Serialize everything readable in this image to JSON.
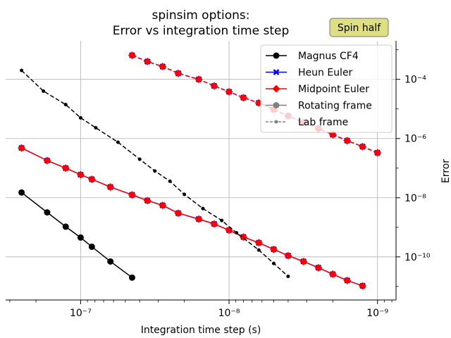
{
  "chart_data": {
    "type": "line",
    "title": "spinsim options:",
    "subtitle": "Error vs integration time step",
    "xlabel": "Integration time step (s)",
    "ylabel": "Error",
    "x_axis": {
      "scale": "log",
      "reversed": true,
      "lim": [
        3.2e-07,
        7.5e-10
      ],
      "major_ticks": [
        1e-07,
        1e-08,
        1e-09
      ],
      "tick_labels": [
        "10⁻⁷",
        "10⁻⁸",
        "10⁻⁹"
      ]
    },
    "y_axis": {
      "scale": "log",
      "position": "right",
      "lim": [
        3.5e-12,
        0.002
      ],
      "major_ticks": [
        0.0001,
        1e-06,
        1e-08,
        1e-10
      ],
      "tick_labels": [
        "10⁻⁴",
        "10⁻⁶",
        "10⁻⁸",
        "10⁻¹⁰"
      ]
    },
    "grid": true,
    "legend_position": "top-right",
    "annotation": {
      "text": "Spin half",
      "background": "#dede82"
    },
    "legend": [
      {
        "label": "Magnus CF4",
        "color": "#000000",
        "marker": "circle",
        "line": "solid"
      },
      {
        "label": "Heun Euler",
        "color": "#0000ff",
        "marker": "x",
        "line": "solid"
      },
      {
        "label": "Midpoint Euler",
        "color": "#ff0000",
        "marker": "diamond",
        "line": "solid"
      },
      {
        "label": "Rotating frame",
        "color": "#808080",
        "marker": "circle",
        "line": "solid"
      },
      {
        "label": "Lab frame",
        "color": "#808080",
        "marker": "small-circle",
        "line": "dashed"
      }
    ],
    "series": [
      {
        "method": "Magnus CF4",
        "frame": "Rotating frame",
        "color": "#000000",
        "marker": "circle",
        "line": "solid",
        "x": [
          2.5e-07,
          1.68e-07,
          1.26e-07,
          1e-07,
          8.4e-08,
          6.3e-08,
          4.5e-08
        ],
        "y": [
          1.5e-08,
          3.2e-09,
          1.05e-09,
          4.5e-10,
          2.2e-10,
          7e-11,
          2e-11
        ]
      },
      {
        "method": "Heun Euler",
        "frame": "Rotating frame",
        "color": "#0000ff",
        "marker": "x",
        "line": "solid",
        "x": [
          2.5e-07,
          1.68e-07,
          1.26e-07,
          1e-07,
          8.4e-08,
          6.3e-08,
          4.5e-08,
          3.55e-08,
          2.8e-08,
          2.2e-08,
          1.6e-08,
          1.26e-08,
          1e-08,
          8e-09,
          6.3e-09,
          5e-09,
          4e-09,
          3.15e-09,
          2.5e-09,
          2e-09,
          1.6e-09,
          1.26e-09
        ],
        "y": [
          4.8e-07,
          1.8e-07,
          1e-07,
          6e-08,
          4.2e-08,
          2.3e-08,
          1.25e-08,
          8e-09,
          5.5e-09,
          3e-09,
          1.9e-09,
          1.3e-09,
          8e-10,
          4.7e-10,
          3e-10,
          1.8e-10,
          1.1e-10,
          7e-11,
          4.3e-11,
          2.6e-11,
          1.6e-11,
          1.05e-11
        ]
      },
      {
        "method": "Midpoint Euler",
        "frame": "Rotating frame",
        "color": "#ff0000",
        "marker": "diamond",
        "line": "solid",
        "x": [
          2.5e-07,
          1.68e-07,
          1.26e-07,
          1e-07,
          8.4e-08,
          6.3e-08,
          4.5e-08,
          3.55e-08,
          2.8e-08,
          2.2e-08,
          1.6e-08,
          1.26e-08,
          1e-08,
          8e-09,
          6.3e-09,
          5e-09,
          4e-09,
          3.15e-09,
          2.5e-09,
          2e-09,
          1.6e-09,
          1.26e-09
        ],
        "y": [
          4.8e-07,
          1.8e-07,
          1e-07,
          6e-08,
          4.2e-08,
          2.3e-08,
          1.25e-08,
          8e-09,
          5.5e-09,
          3e-09,
          1.9e-09,
          1.3e-09,
          8e-10,
          4.7e-10,
          3e-10,
          1.8e-10,
          1.1e-10,
          7e-11,
          4.3e-11,
          2.6e-11,
          1.6e-11,
          1.05e-11
        ]
      },
      {
        "method": "Magnus CF4",
        "frame": "Lab frame",
        "color": "#000000",
        "marker": "small-circle",
        "line": "dashed",
        "x": [
          2.5e-07,
          1.78e-07,
          1.26e-07,
          1e-07,
          7.9e-08,
          5.6e-08,
          4e-08,
          3.16e-08,
          2.5e-08,
          2e-08,
          1.5e-08,
          1.12e-08,
          8.9e-09,
          6.3e-09,
          5e-09,
          4e-09
        ],
        "y": [
          0.0002,
          4e-05,
          1.4e-05,
          5e-06,
          2.3e-06,
          7.5e-07,
          2e-07,
          8e-08,
          3.6e-08,
          1.3e-08,
          4.3e-09,
          1.7e-09,
          6.5e-10,
          1.7e-10,
          6e-11,
          2.2e-11
        ]
      },
      {
        "method": "Heun Euler",
        "frame": "Lab frame",
        "color": "#0000ff",
        "marker": "x",
        "line": "dashed",
        "x": [
          4.5e-08,
          3.55e-08,
          2.8e-08,
          2.2e-08,
          1.6e-08,
          1.26e-08,
          1e-08,
          8e-09,
          6.3e-09,
          5e-09,
          4e-09,
          3.15e-09,
          2.5e-09,
          2e-09,
          1.6e-09,
          1.26e-09,
          1e-09
        ],
        "y": [
          0.00065,
          0.0004,
          0.00027,
          0.00016,
          0.0001,
          6e-05,
          3.8e-05,
          2.4e-05,
          1.6e-05,
          9.5e-06,
          5.8e-06,
          3.5e-06,
          2.2e-06,
          1.35e-06,
          8.5e-07,
          5.3e-07,
          3.3e-07
        ]
      },
      {
        "method": "Midpoint Euler",
        "frame": "Lab frame",
        "color": "#ff0000",
        "marker": "diamond",
        "line": "dashed",
        "x": [
          4.5e-08,
          3.55e-08,
          2.8e-08,
          2.2e-08,
          1.6e-08,
          1.26e-08,
          1e-08,
          8e-09,
          6.3e-09,
          5e-09,
          4e-09,
          3.15e-09,
          2.5e-09,
          2e-09,
          1.6e-09,
          1.26e-09,
          1e-09
        ],
        "y": [
          0.00065,
          0.0004,
          0.00027,
          0.00016,
          0.0001,
          6e-05,
          3.8e-05,
          2.4e-05,
          1.6e-05,
          9.5e-06,
          5.8e-06,
          3.5e-06,
          2.2e-06,
          1.35e-06,
          8.5e-07,
          5.3e-07,
          3.3e-07
        ]
      }
    ]
  }
}
